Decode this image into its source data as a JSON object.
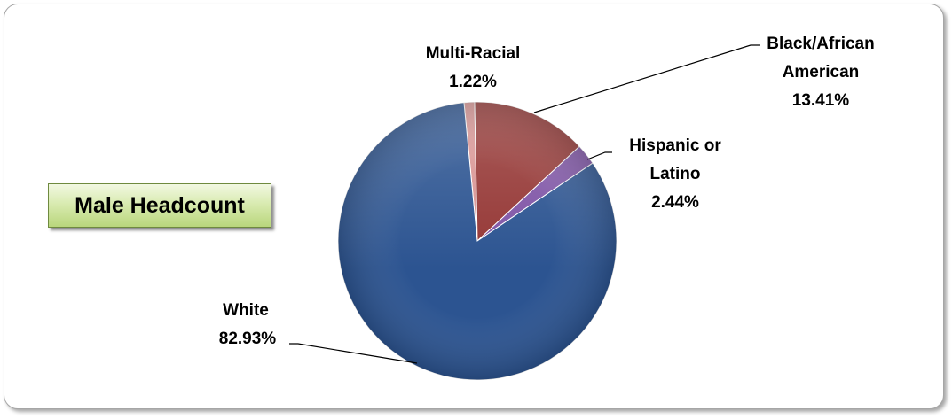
{
  "chart_data": {
    "type": "pie",
    "title": "Male Headcount",
    "slices": [
      {
        "name": "Multi-Racial",
        "value": 1.22,
        "percent_label": "1.22%",
        "color": "#d99594"
      },
      {
        "name": "Black/African American",
        "value": 13.41,
        "percent_label": "13.41%",
        "color": "#953735"
      },
      {
        "name": "Hispanic or Latino",
        "value": 2.44,
        "percent_label": "2.44%",
        "color": "#7f54a6"
      },
      {
        "name": "White",
        "value": 82.93,
        "percent_label": "82.93%",
        "color": "#2c5491"
      }
    ],
    "start_angle_deg": -5.5,
    "direction": "clockwise"
  }
}
